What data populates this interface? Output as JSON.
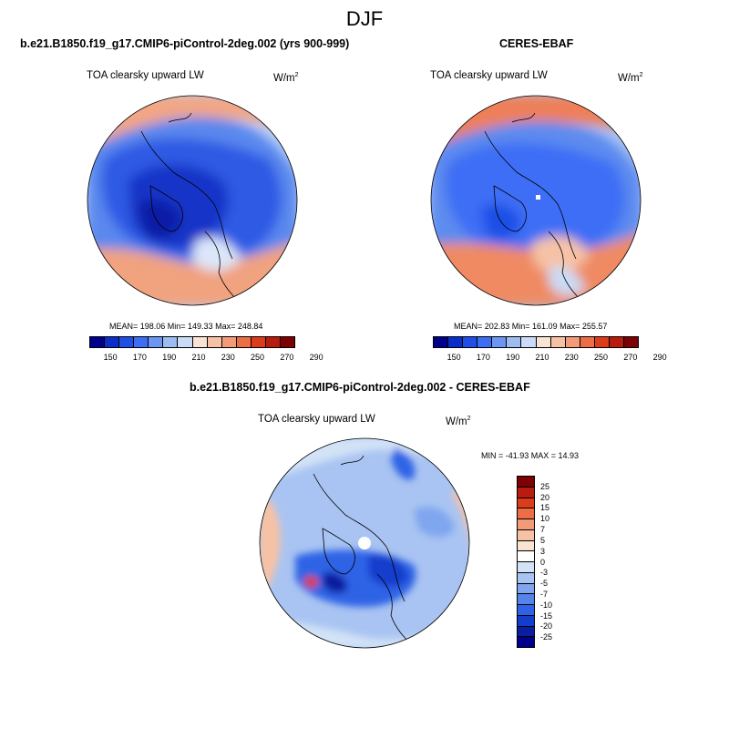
{
  "figure": {
    "title": "DJF"
  },
  "panels": [
    {
      "title": "b.e21.B1850.f19_g17.CMIP6-piControl-2deg.002 (yrs 900-999)",
      "variable": "TOA clearsky upward LW",
      "units": "W/m",
      "units_sup": "2",
      "stats": "MEAN= 198.06  Min= 149.33  Max= 248.84"
    },
    {
      "title": "CERES-EBAF",
      "variable": "TOA clearsky upward LW",
      "units": "W/m",
      "units_sup": "2",
      "stats": "MEAN= 202.83  Min= 161.09  Max= 255.57"
    },
    {
      "title": "b.e21.B1850.f19_g17.CMIP6-piControl-2deg.002 - CERES-EBAF",
      "variable": "TOA clearsky upward LW",
      "units": "W/m",
      "units_sup": "2",
      "stats": "MIN = -41.93 MAX =  14.93"
    }
  ],
  "colorbar_abs": {
    "ticks": [
      "150",
      "170",
      "190",
      "210",
      "230",
      "250",
      "270",
      "290"
    ],
    "colors": [
      "#00008b",
      "#0a2fc9",
      "#1f4fe6",
      "#3c6ef5",
      "#6b97f3",
      "#9dbcf0",
      "#c9dbf6",
      "#f9e3d3",
      "#f6c2a6",
      "#f29b78",
      "#ed6d45",
      "#dd3c1c",
      "#b81c0e",
      "#7d0005"
    ]
  },
  "colorbar_diff": {
    "ticks": [
      "25",
      "20",
      "15",
      "10",
      "7",
      "5",
      "3",
      "0",
      "-3",
      "-5",
      "-7",
      "-10",
      "-15",
      "-20",
      "-25"
    ],
    "colors": [
      "#7d0005",
      "#b81c0e",
      "#dd3c1c",
      "#ed6d45",
      "#f29b78",
      "#f6c2a6",
      "#f9e3d3",
      "#ffffff",
      "#d2e2f7",
      "#a9c4f2",
      "#7fa6ef",
      "#5585ec",
      "#2f63e6",
      "#133ecc",
      "#0a1f9f",
      "#00008b"
    ]
  },
  "map_data": {
    "projection": "north-polar-stereographic",
    "fields": [
      "model",
      "observation",
      "difference"
    ]
  }
}
